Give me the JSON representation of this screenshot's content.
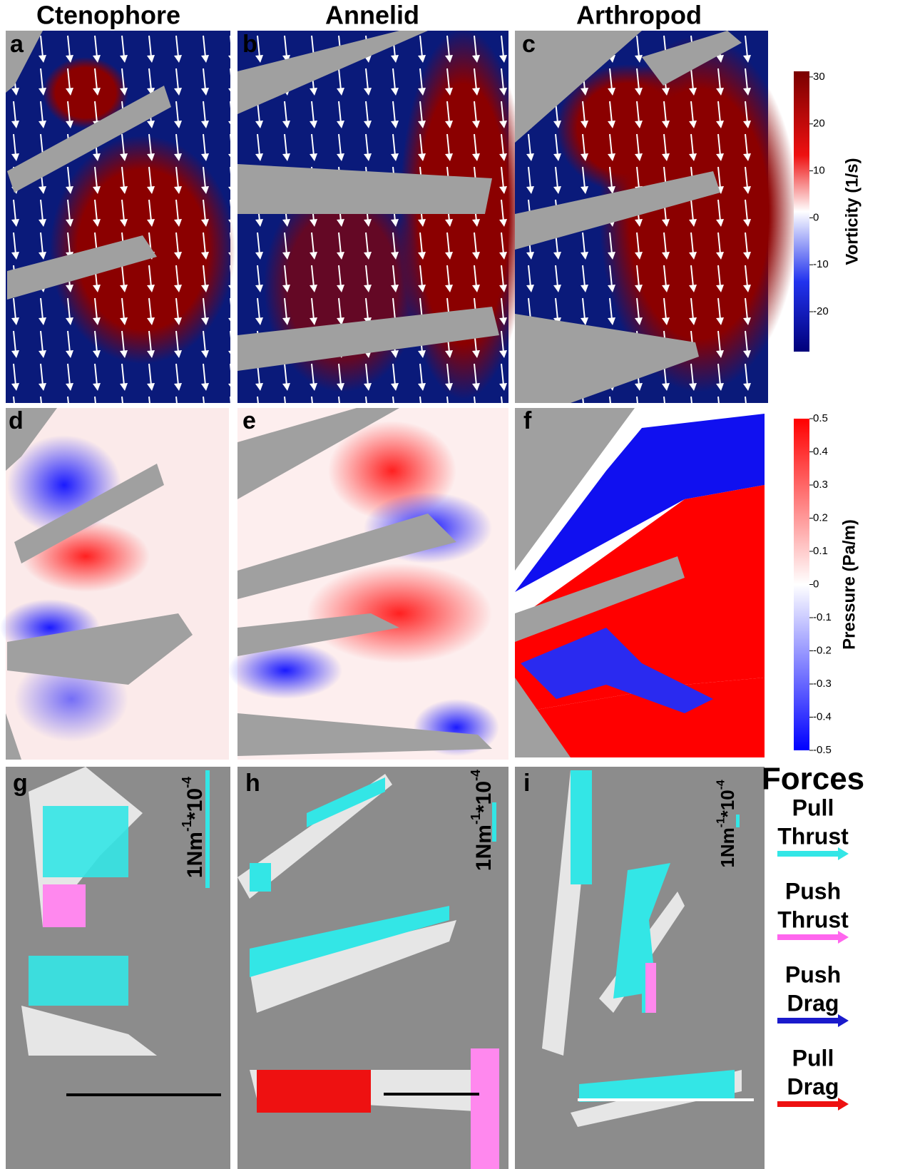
{
  "columns": [
    "Ctenophore",
    "Annelid",
    "Arthropod"
  ],
  "panels": [
    "a",
    "b",
    "c",
    "d",
    "e",
    "f",
    "g",
    "h",
    "i"
  ],
  "colorbars": [
    {
      "label": "Vorticity (1/s)",
      "lim": [
        -28.5,
        31.2
      ],
      "ticks": [
        30,
        20,
        10,
        0,
        -10,
        -20
      ]
    },
    {
      "label": "Pressure (Pa/m)",
      "lim": [
        -0.5,
        0.5
      ],
      "ticks": [
        0.5,
        0.4,
        0.3,
        0.2,
        0.1,
        0,
        -0.1,
        -0.2,
        -0.3,
        -0.4,
        -0.5
      ]
    }
  ],
  "scale_label": {
    "base": "1Nm",
    "exp1": "-1",
    "mid": "*10",
    "exp2": "-4"
  },
  "legend": {
    "title": "Forces",
    "items": [
      {
        "line1": "Pull",
        "line2": "Thrust",
        "color": "#33e6e6"
      },
      {
        "line1": "Push",
        "line2": "Thrust",
        "color": "#ff66ee"
      },
      {
        "line1": "Push",
        "line2": "Drag",
        "color": "#1a1acc"
      },
      {
        "line1": "Pull",
        "line2": "Drag",
        "color": "#ee1111"
      }
    ]
  }
}
